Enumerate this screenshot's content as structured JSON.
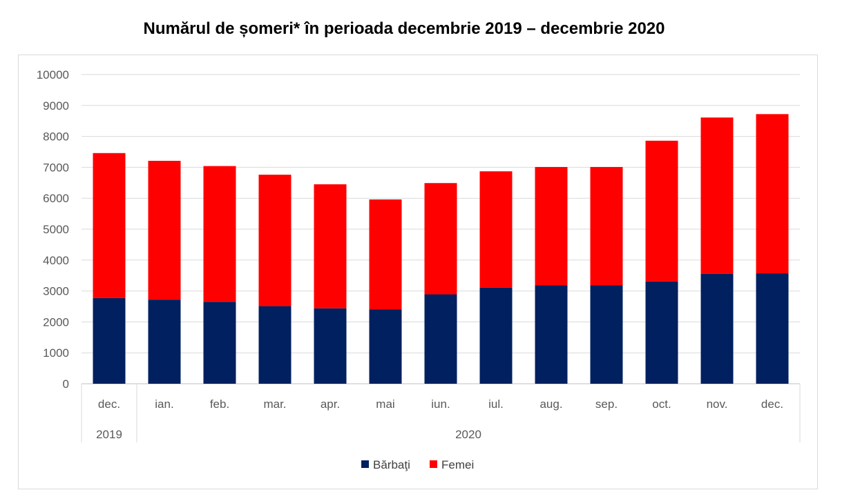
{
  "chart_data": {
    "type": "bar",
    "stacked": true,
    "title": "Numărul de șomeri* în perioada decembrie 2019 – decembrie 2020",
    "categories": [
      "dec.",
      "ian.",
      "feb.",
      "mar.",
      "apr.",
      "mai",
      "iun.",
      "iul.",
      "aug.",
      "sep.",
      "oct.",
      "nov.",
      "dec."
    ],
    "category_groups": [
      {
        "label": "2019",
        "span": 1
      },
      {
        "label": "2020",
        "span": 12
      }
    ],
    "series": [
      {
        "name": "Bărbaţi",
        "color": "#002060",
        "values": [
          2770,
          2720,
          2650,
          2510,
          2440,
          2400,
          2890,
          3110,
          3180,
          3180,
          3310,
          3550,
          3570
        ]
      },
      {
        "name": "Femei",
        "color": "#ff0000",
        "values": [
          4690,
          4490,
          4390,
          4250,
          4010,
          3560,
          3600,
          3760,
          3830,
          3830,
          4550,
          5060,
          5150
        ]
      }
    ],
    "ylim": [
      0,
      10000
    ],
    "yticks": [
      0,
      1000,
      2000,
      3000,
      4000,
      5000,
      6000,
      7000,
      8000,
      9000,
      10000
    ],
    "grid": true,
    "legend_position": "bottom"
  }
}
